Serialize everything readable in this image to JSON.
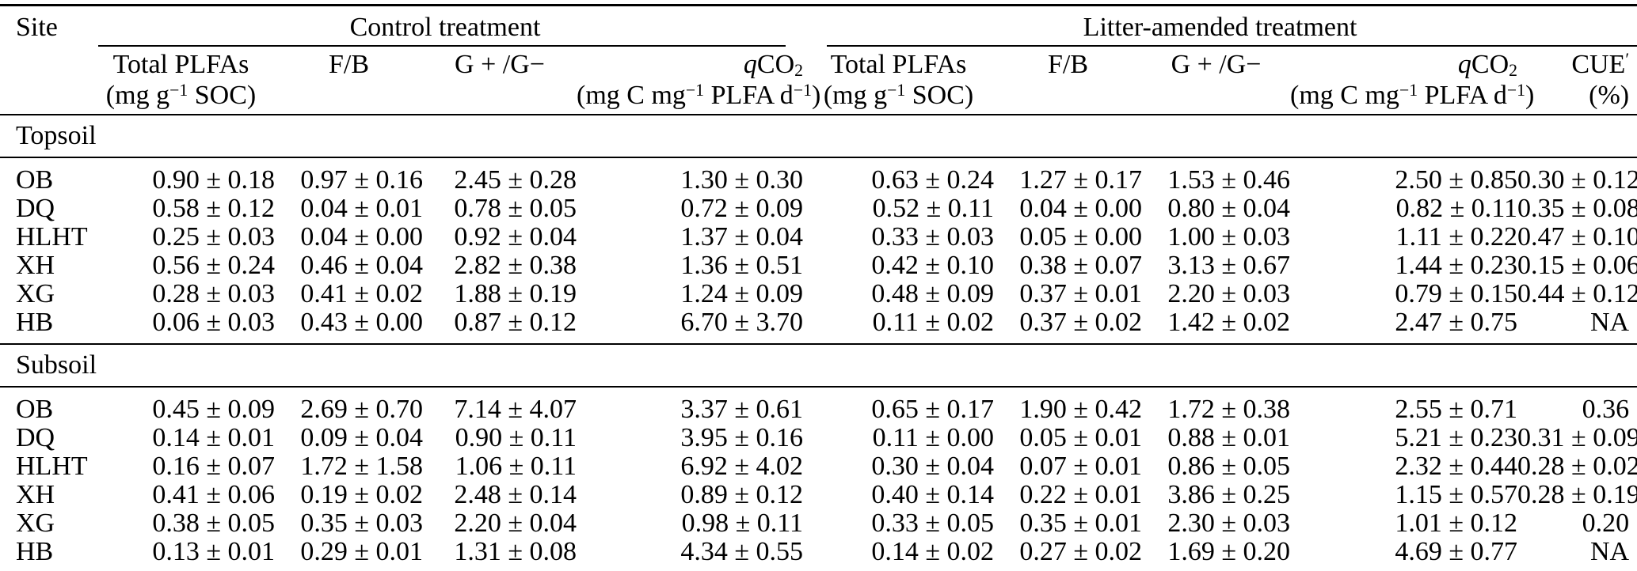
{
  "table": {
    "site_header": "Site",
    "groups": [
      {
        "id": "control",
        "label": "Control treatment",
        "span": 4
      },
      {
        "id": "litter",
        "label": "Litter-amended treatment",
        "span": 5
      }
    ],
    "columns": [
      {
        "id": "total-plfas-control",
        "group": "control",
        "align": "center",
        "line1": [
          {
            "t": "Total PLFAs"
          }
        ],
        "line2": [
          {
            "t": "(mg g"
          },
          {
            "sup": "−1"
          },
          {
            "t": " SOC)"
          }
        ]
      },
      {
        "id": "fb-control",
        "group": "control",
        "align": "center",
        "line1": [
          {
            "t": "F/B"
          }
        ],
        "line2": []
      },
      {
        "id": "gplus-gminus-control",
        "group": "control",
        "align": "center",
        "line1": [
          {
            "t": "G + /G−"
          }
        ],
        "line2": []
      },
      {
        "id": "qco2-control",
        "group": "control",
        "align": "right",
        "line1": [
          {
            "i": "q"
          },
          {
            "t": "CO"
          },
          {
            "sub": "2"
          }
        ],
        "line2": [
          {
            "t": "(mg C mg"
          },
          {
            "sup": "−1"
          },
          {
            "t": " PLFA d"
          },
          {
            "sup": "−1"
          },
          {
            "t": ")"
          }
        ]
      },
      {
        "id": "total-plfas-litter",
        "group": "litter",
        "align": "center",
        "line1": [
          {
            "t": "Total PLFAs"
          }
        ],
        "line2": [
          {
            "t": "(mg g"
          },
          {
            "sup": "−1"
          },
          {
            "t": " SOC)"
          }
        ]
      },
      {
        "id": "fb-litter",
        "group": "litter",
        "align": "center",
        "line1": [
          {
            "t": "F/B"
          }
        ],
        "line2": []
      },
      {
        "id": "gplus-gminus-litter",
        "group": "litter",
        "align": "center",
        "line1": [
          {
            "t": "G + /G−"
          }
        ],
        "line2": []
      },
      {
        "id": "qco2-litter",
        "group": "litter",
        "align": "right",
        "line1": [
          {
            "i": "q"
          },
          {
            "t": "CO"
          },
          {
            "sub": "2"
          }
        ],
        "line2": [
          {
            "t": "(mg C mg"
          },
          {
            "sup": "−1"
          },
          {
            "t": " PLFA d"
          },
          {
            "sup": "−1"
          },
          {
            "t": ")"
          }
        ]
      },
      {
        "id": "cue-litter",
        "group": "litter",
        "align": "right",
        "line1": [
          {
            "t": "CUE"
          },
          {
            "sup": "′"
          }
        ],
        "line2": [
          {
            "t": "(%)"
          }
        ]
      }
    ],
    "sections": [
      {
        "id": "topsoil",
        "label": "Topsoil",
        "rows": [
          {
            "site": "OB",
            "values": [
              "0.90 ± 0.18",
              "0.97 ± 0.16",
              "2.45 ± 0.28",
              "1.30 ± 0.30",
              "0.63 ± 0.24",
              "1.27 ± 0.17",
              "1.53 ± 0.46",
              "2.50 ± 0.85",
              "0.30 ± 0.12"
            ]
          },
          {
            "site": "DQ",
            "values": [
              "0.58 ± 0.12",
              "0.04 ± 0.01",
              "0.78 ± 0.05",
              "0.72 ± 0.09",
              "0.52 ± 0.11",
              "0.04 ± 0.00",
              "0.80 ± 0.04",
              "0.82 ± 0.11",
              "0.35 ± 0.08"
            ]
          },
          {
            "site": "HLHT",
            "values": [
              "0.25 ± 0.03",
              "0.04 ± 0.00",
              "0.92 ± 0.04",
              "1.37 ± 0.04",
              "0.33 ± 0.03",
              "0.05 ± 0.00",
              "1.00 ± 0.03",
              "1.11 ± 0.22",
              "0.47 ± 0.10"
            ]
          },
          {
            "site": "XH",
            "values": [
              "0.56 ± 0.24",
              "0.46 ± 0.04",
              "2.82 ± 0.38",
              "1.36 ± 0.51",
              "0.42 ± 0.10",
              "0.38 ± 0.07",
              "3.13 ± 0.67",
              "1.44 ± 0.23",
              "0.15 ± 0.06"
            ]
          },
          {
            "site": "XG",
            "values": [
              "0.28 ± 0.03",
              "0.41 ± 0.02",
              "1.88 ± 0.19",
              "1.24 ± 0.09",
              "0.48 ± 0.09",
              "0.37 ± 0.01",
              "2.20 ± 0.03",
              "0.79 ± 0.15",
              "0.44 ± 0.12"
            ]
          },
          {
            "site": "HB",
            "values": [
              "0.06 ± 0.03",
              "0.43 ± 0.00",
              "0.87 ± 0.12",
              "6.70 ± 3.70",
              "0.11 ± 0.02",
              "0.37 ± 0.02",
              "1.42 ± 0.02",
              "2.47 ± 0.75",
              "NA"
            ]
          }
        ]
      },
      {
        "id": "subsoil",
        "label": "Subsoil",
        "rows": [
          {
            "site": "OB",
            "values": [
              "0.45 ± 0.09",
              "2.69 ± 0.70",
              "7.14 ± 4.07",
              "3.37 ± 0.61",
              "0.65 ± 0.17",
              "1.90 ± 0.42",
              "1.72 ± 0.38",
              "2.55 ± 0.71",
              "0.36"
            ]
          },
          {
            "site": "DQ",
            "values": [
              "0.14 ± 0.01",
              "0.09 ± 0.04",
              "0.90 ± 0.11",
              "3.95 ± 0.16",
              "0.11 ± 0.00",
              "0.05 ± 0.01",
              "0.88 ± 0.01",
              "5.21 ± 0.23",
              "0.31 ± 0.09"
            ]
          },
          {
            "site": "HLHT",
            "values": [
              "0.16 ± 0.07",
              "1.72 ± 1.58",
              "1.06 ± 0.11",
              "6.92 ± 4.02",
              "0.30 ± 0.04",
              "0.07 ± 0.01",
              "0.86 ± 0.05",
              "2.32 ± 0.44",
              "0.28 ± 0.02"
            ]
          },
          {
            "site": "XH",
            "values": [
              "0.41 ± 0.06",
              "0.19 ± 0.02",
              "2.48 ± 0.14",
              "0.89 ± 0.12",
              "0.40 ± 0.14",
              "0.22 ± 0.01",
              "3.86 ± 0.25",
              "1.15 ± 0.57",
              "0.28 ± 0.19"
            ]
          },
          {
            "site": "XG",
            "values": [
              "0.38 ± 0.05",
              "0.35 ± 0.03",
              "2.20 ± 0.04",
              "0.98 ± 0.11",
              "0.33 ± 0.05",
              "0.35 ± 0.01",
              "2.30 ± 0.03",
              "1.01 ± 0.12",
              "0.20"
            ]
          },
          {
            "site": "HB",
            "values": [
              "0.13 ± 0.01",
              "0.29 ± 0.01",
              "1.31 ± 0.08",
              "4.34 ± 0.55",
              "0.14 ± 0.02",
              "0.27 ± 0.02",
              "1.69 ± 0.20",
              "4.69 ± 0.77",
              "NA"
            ]
          }
        ]
      }
    ]
  }
}
